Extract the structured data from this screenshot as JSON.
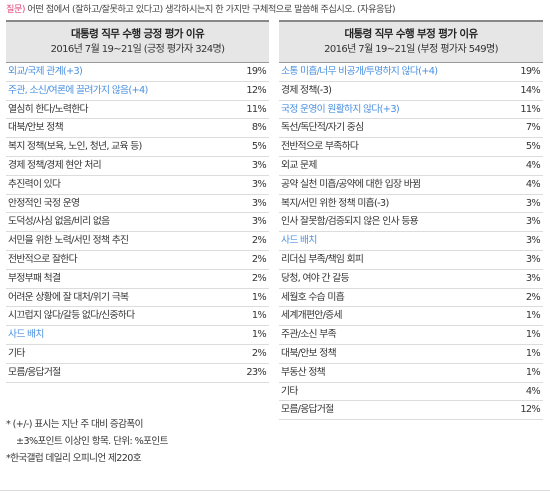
{
  "question": {
    "tag": "질문)",
    "text": " 어떤 점에서 (잘하고/잘못하고 있다고) 생각하시는지 한 가지만 구체적으로 말씀해 주십시오. (자유응답)"
  },
  "left": {
    "title": "대통령 직무 수행 긍정 평가 이유",
    "subtitle": "2016년 7월 19~21일 (긍정 평가자 324명)",
    "rows": [
      {
        "label": "외교/국제 관계(+3)",
        "value": "19%",
        "highlight": true
      },
      {
        "label": "주관, 소신/여론에 끌려가지 않음(+4)",
        "value": "12%",
        "highlight": true
      },
      {
        "label": "열심히 한다/노력한다",
        "value": "11%",
        "highlight": false
      },
      {
        "label": "대북/안보 정책",
        "value": "8%",
        "highlight": false
      },
      {
        "label": "복지 정책(보육, 노인, 청년, 교육 등)",
        "value": "5%",
        "highlight": false
      },
      {
        "label": "경제 정책/경제 현안 처리",
        "value": "3%",
        "highlight": false
      },
      {
        "label": "추진력이 있다",
        "value": "3%",
        "highlight": false
      },
      {
        "label": "안정적인 국정 운영",
        "value": "3%",
        "highlight": false
      },
      {
        "label": "도덕성/사심 없음/비리 없음",
        "value": "3%",
        "highlight": false
      },
      {
        "label": "서민을 위한 노력/서민 정책 추진",
        "value": "2%",
        "highlight": false
      },
      {
        "label": "전반적으로 잘한다",
        "value": "2%",
        "highlight": false
      },
      {
        "label": "부정부패 척결",
        "value": "2%",
        "highlight": false
      },
      {
        "label": "어려운 상황에 잘 대처/위기 극복",
        "value": "1%",
        "highlight": false
      },
      {
        "label": "시끄럽지 않다/갈등 없다/신중하다",
        "value": "1%",
        "highlight": false
      },
      {
        "label": "사드 배치",
        "value": "1%",
        "highlight": true
      },
      {
        "label": "기타",
        "value": "2%",
        "highlight": false
      },
      {
        "label": "모름/응답거절",
        "value": "23%",
        "highlight": false
      }
    ]
  },
  "right": {
    "title": "대통령 직무 수행 부정 평가 이유",
    "subtitle": "2016년 7월 19~21일 (부정 평가자 549명)",
    "rows": [
      {
        "label": "소통 미흡/너무 비공개/투명하지 않다(+4)",
        "value": "19%",
        "highlight": true
      },
      {
        "label": "경제 정책(-3)",
        "value": "14%",
        "highlight": false
      },
      {
        "label": "국정 운영이 원활하지 않다(+3)",
        "value": "11%",
        "highlight": true
      },
      {
        "label": "독선/독단적/자기 중심",
        "value": "7%",
        "highlight": false
      },
      {
        "label": "전반적으로 부족하다",
        "value": "5%",
        "highlight": false
      },
      {
        "label": "외교 문제",
        "value": "4%",
        "highlight": false
      },
      {
        "label": "공약 실천 미흡/공약에 대한 입장 바뀜",
        "value": "4%",
        "highlight": false
      },
      {
        "label": "복지/서민 위한 정책 미흡(-3)",
        "value": "3%",
        "highlight": false
      },
      {
        "label": "인사 잘못함/검증되지 않은 인사 등용",
        "value": "3%",
        "highlight": false
      },
      {
        "label": "사드 배치",
        "value": "3%",
        "highlight": true
      },
      {
        "label": "리더십 부족/책임 회피",
        "value": "3%",
        "highlight": false
      },
      {
        "label": "당청, 여야 간 갈등",
        "value": "3%",
        "highlight": false
      },
      {
        "label": "세월호 수습 미흡",
        "value": "2%",
        "highlight": false
      },
      {
        "label": "세계개편안/증세",
        "value": "1%",
        "highlight": false
      },
      {
        "label": "주관/소신 부족",
        "value": "1%",
        "highlight": false
      },
      {
        "label": "대북/안보 정책",
        "value": "1%",
        "highlight": false
      },
      {
        "label": "부동산 정책",
        "value": "1%",
        "highlight": false
      },
      {
        "label": "기타",
        "value": "4%",
        "highlight": false
      },
      {
        "label": "모름/응답거절",
        "value": "12%",
        "highlight": false
      }
    ]
  },
  "notes": [
    "* (+/-) 표시는 지난 주 대비 증감폭이",
    "  ±3%포인트 이상인 항목. 단위: %포인트",
    "*한국갤럽 데일리 오피니언 제220호"
  ],
  "colors": {
    "highlight": "#4a90e2",
    "question_tag": "#e0457b",
    "header_bg": "#e6e6e6"
  }
}
